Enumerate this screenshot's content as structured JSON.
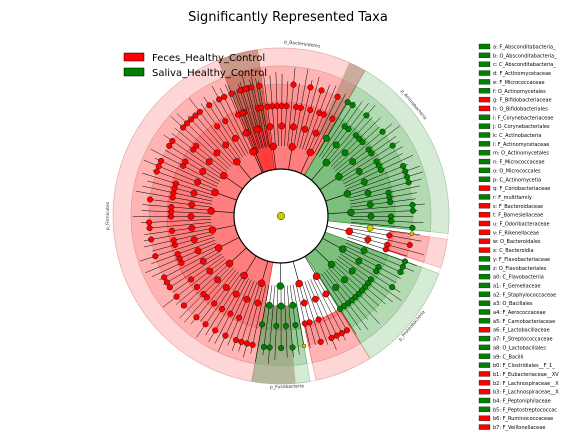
{
  "chart_data": {
    "type": "cladogram",
    "title": "Significantly Represented Taxa",
    "colors": {
      "feces": "#ff0000",
      "saliva": "#008000",
      "neutral": "#cccc00"
    },
    "legend": [
      {
        "name": "Feces_Healthy_Control",
        "group": "feces"
      },
      {
        "name": "Saliva_Healthy_Control",
        "group": "saliva"
      }
    ],
    "sector_labels": [
      {
        "text": "p_Bacteroidetes",
        "group": "feces",
        "angle": -83
      },
      {
        "text": "p_Actinobacteria",
        "group": "saliva",
        "angle": -40
      },
      {
        "text": "p_Proteobacteria",
        "group": "saliva",
        "angle": 40
      },
      {
        "text": "p_Firmicutes",
        "group": "feces",
        "angle": 180
      },
      {
        "text": "p_Fusobacteria",
        "group": "saliva",
        "angle": 88
      }
    ],
    "wedges": [
      {
        "group": "feces",
        "start": -112,
        "end": -60,
        "level": 1
      },
      {
        "group": "feces",
        "start": 100,
        "end": 262,
        "level": 1
      },
      {
        "group": "saliva",
        "start": -60,
        "end": 6,
        "level": 1
      },
      {
        "group": "saliva",
        "start": 20,
        "end": 58,
        "level": 1
      },
      {
        "group": "saliva",
        "start": 80,
        "end": 100,
        "level": 2
      },
      {
        "group": "feces",
        "start": 58,
        "end": 78,
        "level": 3
      },
      {
        "group": "feces",
        "start": 8,
        "end": 18,
        "level": 3
      }
    ],
    "key": [
      {
        "id": "a",
        "text": "a: F_Absconditabacteria_",
        "group": "saliva"
      },
      {
        "id": "b",
        "text": "b: O_Absconditabacteria_",
        "group": "saliva"
      },
      {
        "id": "c",
        "text": "c: C_Absconditabacteria_",
        "group": "saliva"
      },
      {
        "id": "d",
        "text": "d: F_Actinomycetaceae",
        "group": "saliva"
      },
      {
        "id": "e",
        "text": "e: F_Micrococcaceae",
        "group": "saliva"
      },
      {
        "id": "f",
        "text": "f: O_Actinomycetales",
        "group": "saliva"
      },
      {
        "id": "g",
        "text": "g: F_Bifidobacteriaceae",
        "group": "feces"
      },
      {
        "id": "h",
        "text": "h: O_Bifidobacteriales",
        "group": "feces"
      },
      {
        "id": "i",
        "text": "i: F_Corynebacteriaceae",
        "group": "saliva"
      },
      {
        "id": "j",
        "text": "j: O_Corynebacteriales",
        "group": "saliva"
      },
      {
        "id": "k",
        "text": "k: C_Actinobacteria",
        "group": "saliva"
      },
      {
        "id": "l",
        "text": "l: F_Actinomycetaceae",
        "group": "saliva"
      },
      {
        "id": "m",
        "text": "m: O_Actinomycetales",
        "group": "saliva"
      },
      {
        "id": "n",
        "text": "n: F_Micrococcaceae",
        "group": "saliva"
      },
      {
        "id": "o",
        "text": "o: O_Micrococcales",
        "group": "saliva"
      },
      {
        "id": "p",
        "text": "p: C_Actinomycetia",
        "group": "saliva"
      },
      {
        "id": "q",
        "text": "q: F_Coriobacteriaceae",
        "group": "feces"
      },
      {
        "id": "r",
        "text": "r: F_multifamily",
        "group": "saliva"
      },
      {
        "id": "s",
        "text": "s: F_Bacteroidaceae",
        "group": "feces"
      },
      {
        "id": "t",
        "text": "t: F_Barnesiellaceae",
        "group": "feces"
      },
      {
        "id": "u",
        "text": "u: F_Odoribacteraceae",
        "group": "feces"
      },
      {
        "id": "v",
        "text": "v: F_Rikenellaceae",
        "group": "feces"
      },
      {
        "id": "w",
        "text": "w: O_Bacteroidales",
        "group": "feces"
      },
      {
        "id": "x",
        "text": "x: C_Bacteroidia",
        "group": "feces"
      },
      {
        "id": "y",
        "text": "y: F_Flavobacteriaceae",
        "group": "saliva"
      },
      {
        "id": "z",
        "text": "z: O_Flavobacteriales",
        "group": "saliva"
      },
      {
        "id": "a0",
        "text": "a0: C_Flavobacteriia",
        "group": "saliva"
      },
      {
        "id": "a1",
        "text": "a1: F_Gemellaceae",
        "group": "saliva"
      },
      {
        "id": "a2",
        "text": "a2: F_Staphylococcaceae",
        "group": "saliva"
      },
      {
        "id": "a3",
        "text": "a3: O_Bacillales",
        "group": "saliva"
      },
      {
        "id": "a4",
        "text": "a4: F_Aerococcaceae",
        "group": "saliva"
      },
      {
        "id": "a5",
        "text": "a5: F_Carnobacteriaceae",
        "group": "saliva"
      },
      {
        "id": "a6",
        "text": "a6: F_Lactobacillaceae",
        "group": "feces"
      },
      {
        "id": "a7",
        "text": "a7: F_Streptococcaceae",
        "group": "saliva"
      },
      {
        "id": "a8",
        "text": "a8: O_Lactobacillales",
        "group": "saliva"
      },
      {
        "id": "a9",
        "text": "a9: C_Bacilli",
        "group": "saliva"
      },
      {
        "id": "b0",
        "text": "b0: F_Clostridiales__F_1_",
        "group": "saliva"
      },
      {
        "id": "b1",
        "text": "b1: F_Eubacteriaceae__XV",
        "group": "feces"
      },
      {
        "id": "b2",
        "text": "b2: F_Lachnospiraceae__X",
        "group": "feces"
      },
      {
        "id": "b3",
        "text": "b3: F_Lachnospiraceae__X",
        "group": "feces"
      },
      {
        "id": "b4",
        "text": "b4: F_Peptoniphilaceae",
        "group": "saliva"
      },
      {
        "id": "b5",
        "text": "b5: F_Peptostreptococcac",
        "group": "saliva"
      },
      {
        "id": "b6",
        "text": "b6: F_Ruminococcaceae",
        "group": "feces"
      },
      {
        "id": "b7",
        "text": "b7: F_Veillonellaceae",
        "group": "feces"
      }
    ]
  }
}
